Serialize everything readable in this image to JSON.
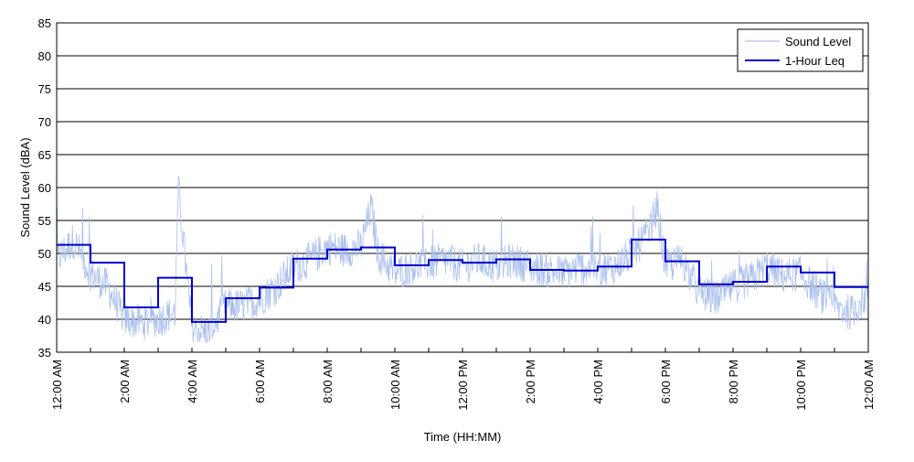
{
  "chart_data": {
    "type": "line",
    "title": "",
    "xlabel": "Time (HH:MM)",
    "ylabel": "Sound Level (dBA)",
    "xlim": [
      0,
      24
    ],
    "ylim": [
      35,
      85
    ],
    "grid": "horizontal",
    "legend_position": "top-right",
    "y_ticks": [
      "35",
      "40",
      "45",
      "50",
      "55",
      "60",
      "65",
      "70",
      "75",
      "80",
      "85"
    ],
    "x_ticks": [
      "12:00 AM",
      "2:00 AM",
      "4:00 AM",
      "6:00 AM",
      "8:00 AM",
      "10:00 AM",
      "12:00 PM",
      "2:00 PM",
      "4:00 PM",
      "6:00 PM",
      "8:00 PM",
      "10:00 PM",
      "12:00 AM"
    ],
    "series": [
      {
        "name": "Sound Level",
        "color": "#aabfee",
        "hours": [
          0,
          0.5,
          1,
          1.5,
          2,
          2.5,
          3,
          3.5,
          3.6,
          4,
          4.5,
          5,
          5.5,
          6,
          6.5,
          7,
          7.5,
          8,
          8.5,
          9,
          9.3,
          9.5,
          10,
          10.5,
          11,
          11.5,
          12,
          12.5,
          13,
          13.5,
          14,
          14.5,
          15,
          15.5,
          16,
          16.5,
          17,
          17.5,
          17.75,
          18,
          18.5,
          19,
          19.5,
          20,
          20.5,
          21,
          21.5,
          22,
          22.5,
          23,
          23.5,
          24
        ],
        "levels": [
          49,
          52,
          47,
          45,
          40,
          39.5,
          40,
          41,
          60,
          38.5,
          38,
          42,
          42,
          43,
          45,
          48,
          49,
          51,
          50.5,
          51,
          57,
          50,
          47,
          48,
          48.5,
          49,
          48,
          49,
          48,
          49,
          48,
          47.5,
          47,
          48,
          47.5,
          48,
          50,
          53,
          57,
          48,
          49,
          44,
          43,
          45,
          46,
          48,
          46.5,
          47,
          44,
          42,
          41,
          44
        ]
      },
      {
        "name": "1-Hour Leq",
        "color": "#0000cc",
        "type": "step",
        "hour_starts": [
          0,
          1,
          2,
          3,
          4,
          5,
          6,
          7,
          8,
          9,
          10,
          11,
          12,
          13,
          14,
          15,
          16,
          17,
          18,
          19,
          20,
          21,
          22,
          23
        ],
        "values": [
          51.3,
          48.6,
          41.8,
          46.3,
          39.6,
          43.2,
          44.8,
          49.2,
          50.6,
          50.9,
          48.2,
          49.0,
          48.6,
          49.1,
          47.5,
          47.4,
          48.0,
          52.1,
          48.8,
          45.3,
          45.7,
          48.0,
          47.1,
          44.9
        ]
      }
    ]
  }
}
